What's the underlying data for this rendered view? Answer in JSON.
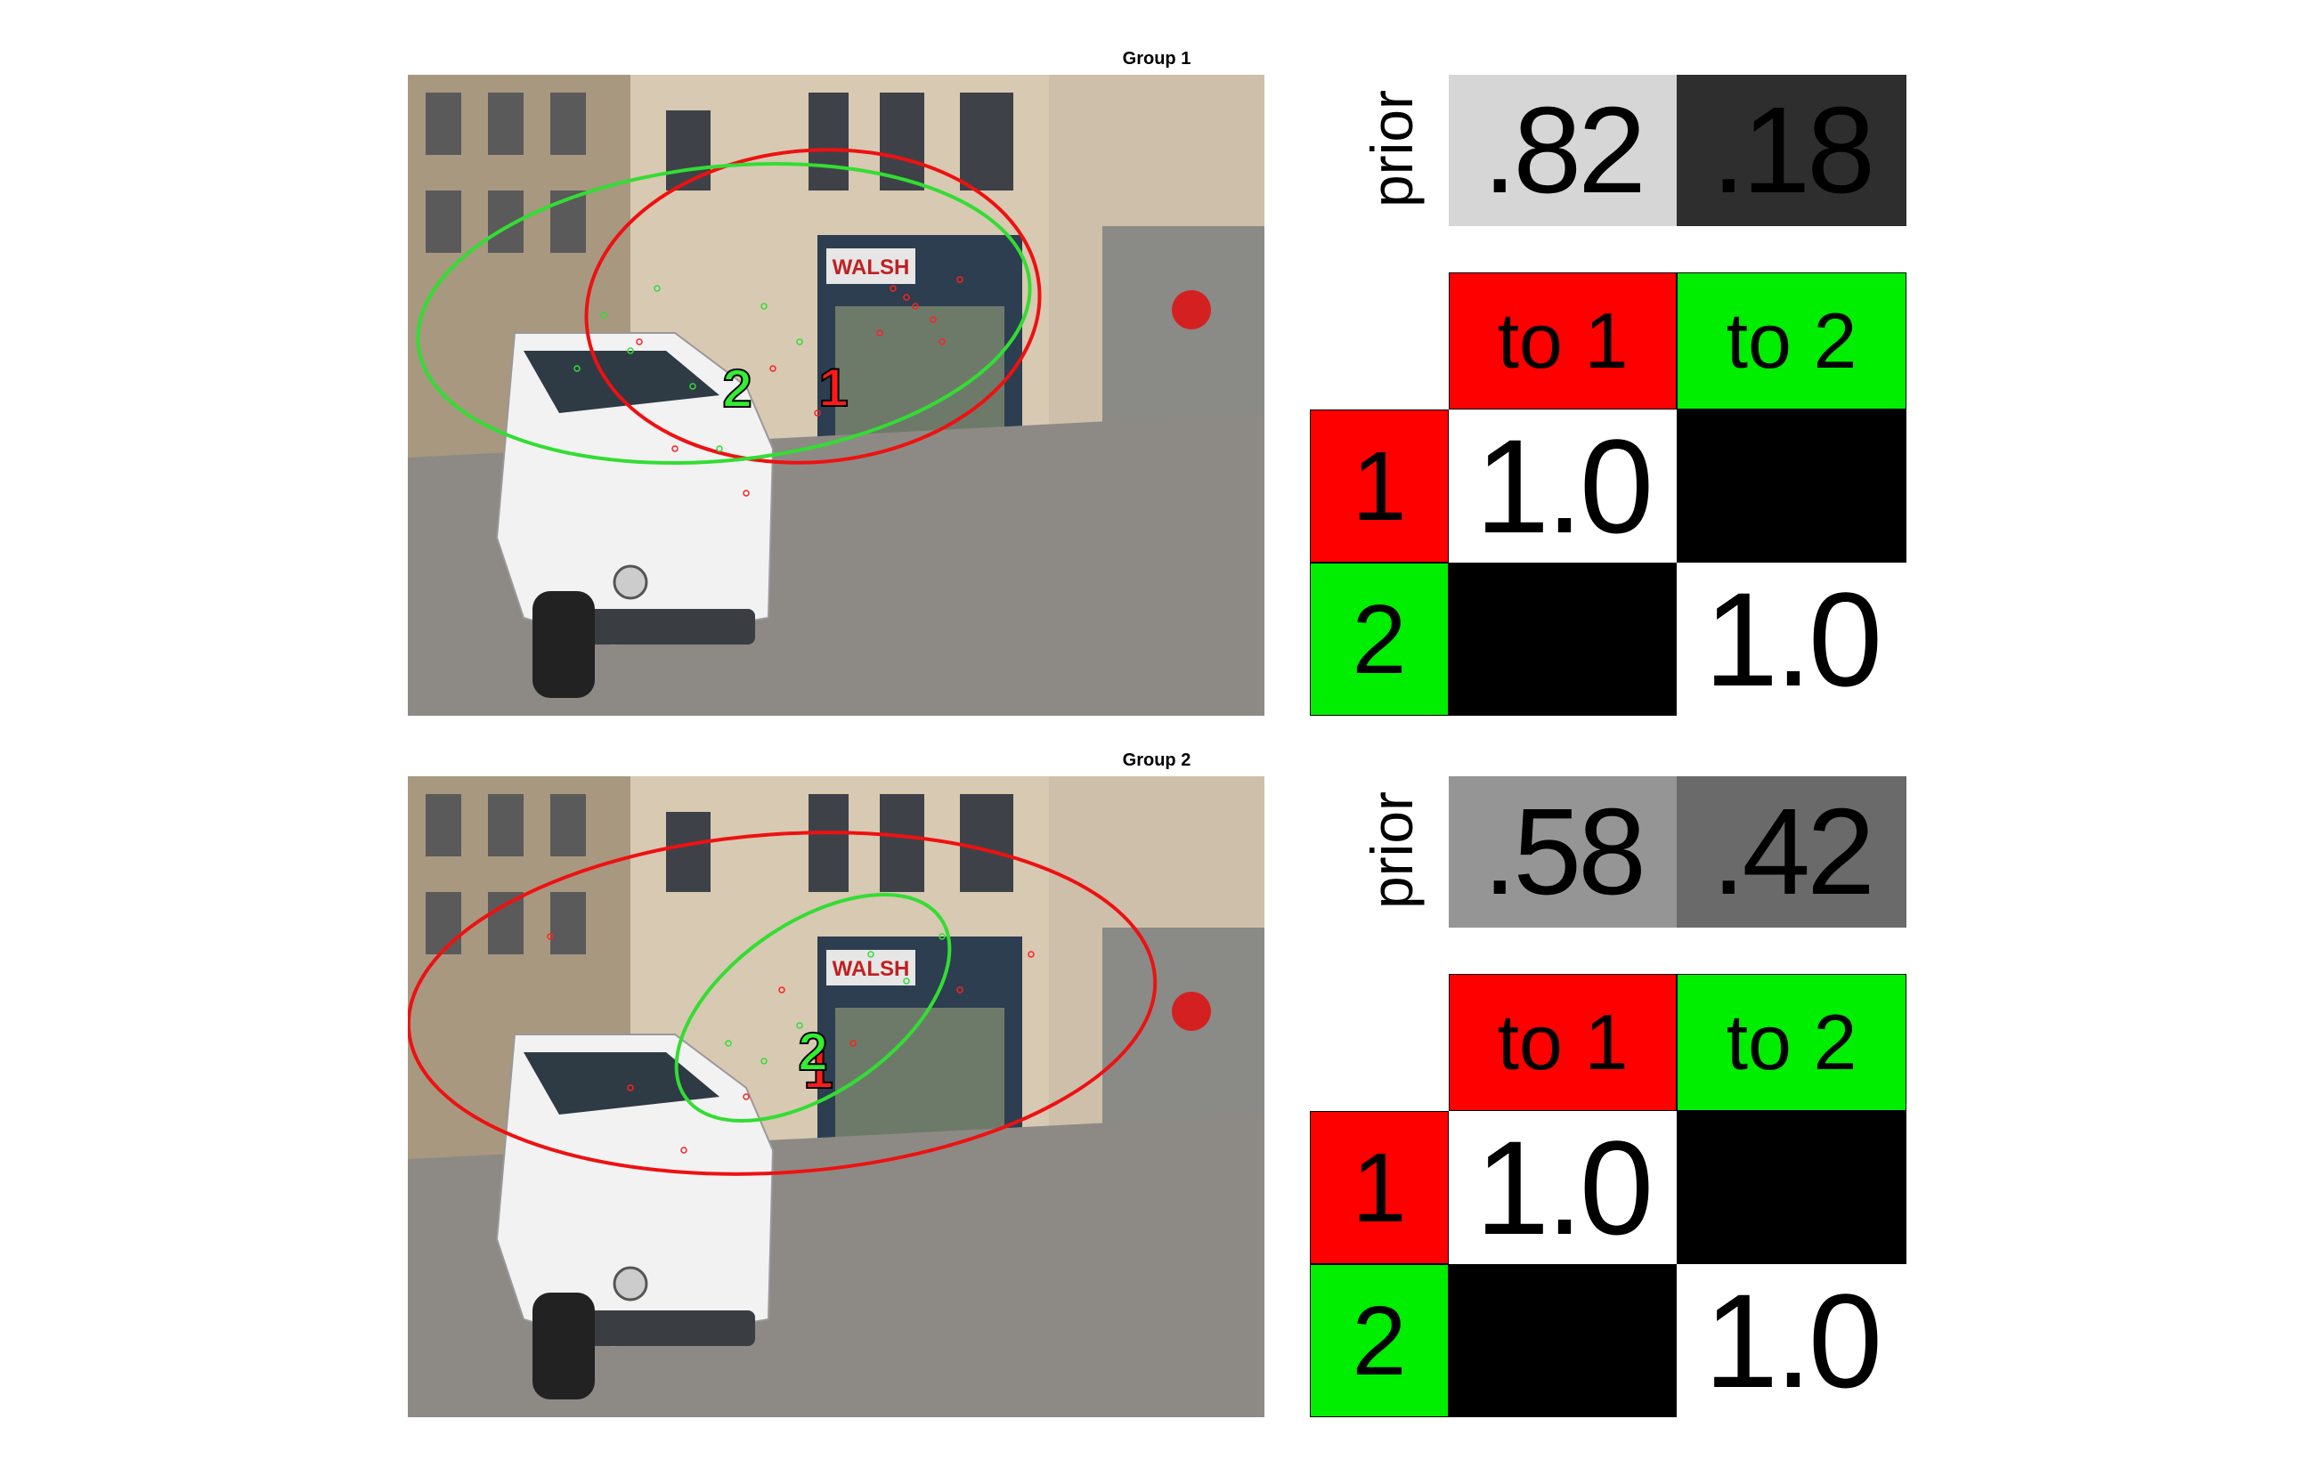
{
  "groups": [
    {
      "title": "Group 1",
      "fixations": [
        {
          "label": "1",
          "color": "#ff1a1a"
        },
        {
          "label": "2",
          "color": "#33ee33"
        }
      ],
      "shop_sign": "WALSH",
      "prior": {
        "label": "prior",
        "values": [
          ".82",
          ".18"
        ],
        "colors": [
          "#d6d6d6",
          "#2e2e2e"
        ]
      },
      "transition": {
        "col_headers": [
          "to 1",
          "to 2"
        ],
        "row_headers": [
          "1",
          "2"
        ],
        "cells": [
          [
            "1.0",
            ""
          ],
          [
            "",
            "1.0"
          ]
        ],
        "cell_colors": [
          [
            "#ffffff",
            "#000000"
          ],
          [
            "#000000",
            "#ffffff"
          ]
        ]
      }
    },
    {
      "title": "Group 2",
      "fixations": [
        {
          "label": "1",
          "color": "#ff1a1a"
        },
        {
          "label": "2",
          "color": "#33ee33"
        }
      ],
      "shop_sign": "WALSH",
      "prior": {
        "label": "prior",
        "values": [
          ".58",
          ".42"
        ],
        "colors": [
          "#959595",
          "#6a6a6a"
        ]
      },
      "transition": {
        "col_headers": [
          "to 1",
          "to 2"
        ],
        "row_headers": [
          "1",
          "2"
        ],
        "cells": [
          [
            "1.0",
            ""
          ],
          [
            "",
            "1.0"
          ]
        ],
        "cell_colors": [
          [
            "#ffffff",
            "#000000"
          ],
          [
            "#000000",
            "#ffffff"
          ]
        ]
      }
    }
  ],
  "colors": {
    "state1": "#ff0000",
    "state2": "#00ee00"
  }
}
